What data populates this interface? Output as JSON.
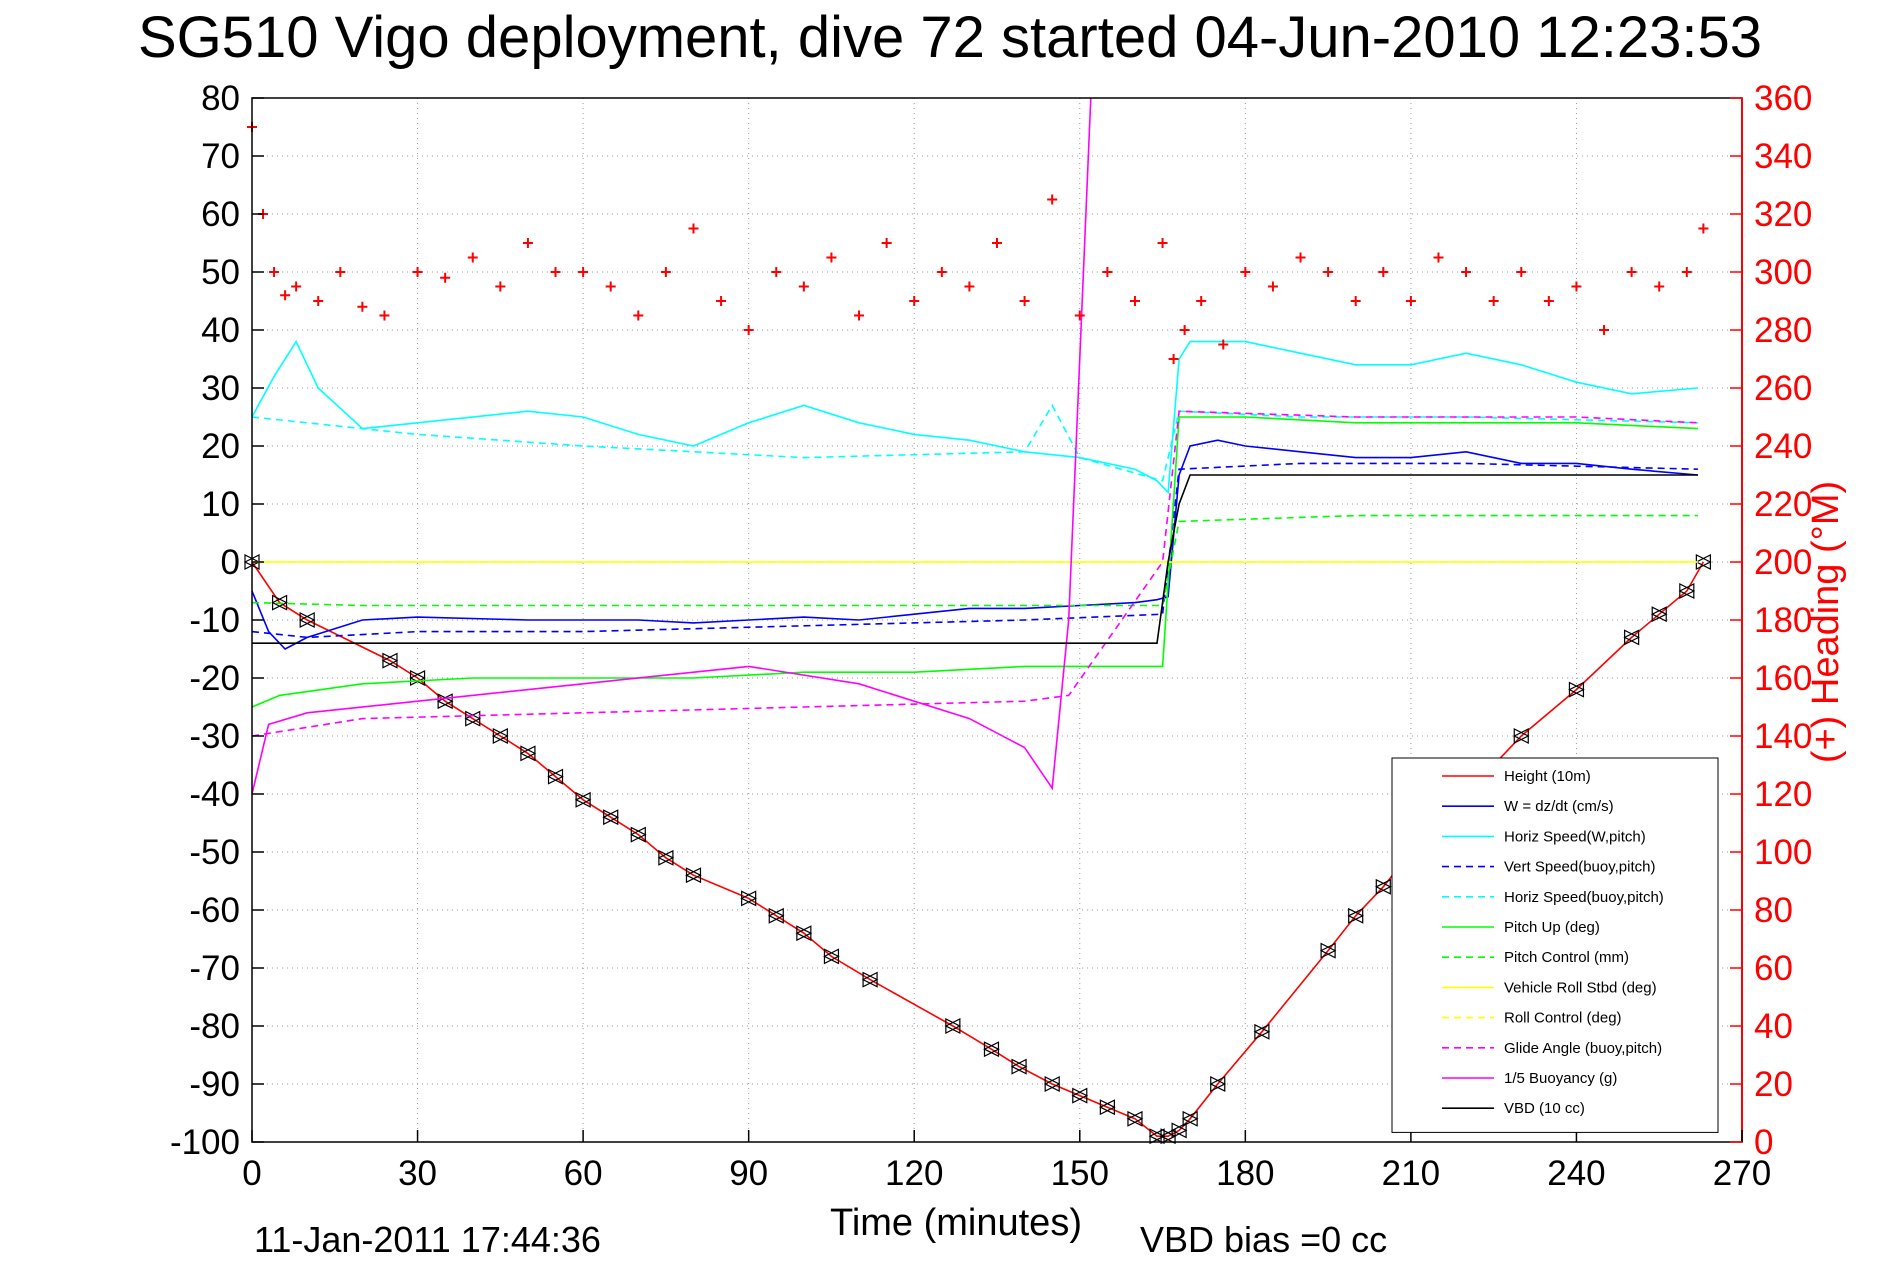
{
  "chart_data": {
    "type": "line",
    "title": "SG510 Vigo deployment, dive 72 started 04-Jun-2010 12:23:53",
    "xlabel": "Time (minutes)",
    "ylabel": "",
    "ylabel_right": "(+) Heading (°M)",
    "xlim": [
      0,
      270
    ],
    "ylim": [
      -100,
      80
    ],
    "ylim_right": [
      0,
      360
    ],
    "xticks": [
      0,
      30,
      60,
      90,
      120,
      150,
      180,
      210,
      240,
      270
    ],
    "yticks": [
      80,
      70,
      60,
      50,
      40,
      30,
      20,
      10,
      0,
      -10,
      -20,
      -30,
      -40,
      -50,
      -60,
      -70,
      -80,
      -90,
      -100
    ],
    "yticks_right": [
      360,
      340,
      320,
      300,
      280,
      260,
      240,
      220,
      200,
      180,
      160,
      140,
      120,
      100,
      80,
      60,
      40,
      20,
      0
    ],
    "grid": true,
    "legend_position": "bottom-right",
    "footer_left": "11-Jan-2011 17:44:36",
    "footer_right": "VBD bias =0 cc",
    "series": [
      {
        "name": "Height (10m)",
        "color": "#ff0000",
        "style": "solid",
        "marker": "triangle",
        "x": [
          0,
          5,
          10,
          25,
          30,
          35,
          40,
          45,
          50,
          55,
          60,
          65,
          70,
          75,
          80,
          90,
          95,
          100,
          105,
          112,
          127,
          134,
          139,
          145,
          150,
          155,
          160,
          164,
          166,
          168,
          170,
          175,
          183,
          195,
          200,
          205,
          210,
          230,
          240,
          250,
          255,
          260,
          263
        ],
        "y": [
          0,
          -7,
          -10,
          -17,
          -20,
          -24,
          -27,
          -30,
          -33,
          -37,
          -41,
          -44,
          -47,
          -51,
          -54,
          -58,
          -61,
          -64,
          -68,
          -72,
          -80,
          -84,
          -87,
          -90,
          -92,
          -94,
          -96,
          -99,
          -99,
          -98,
          -96,
          -90,
          -81,
          -67,
          -61,
          -56,
          -50,
          -30,
          -22,
          -13,
          -9,
          -5,
          0
        ]
      },
      {
        "name": "W = dz/dt (cm/s)",
        "color": "#0000ff",
        "style": "solid",
        "x": [
          0,
          3,
          6,
          10,
          20,
          30,
          50,
          60,
          70,
          80,
          90,
          100,
          110,
          120,
          130,
          140,
          150,
          160,
          164,
          166,
          168,
          170,
          175,
          180,
          190,
          200,
          210,
          220,
          230,
          240,
          250,
          262
        ],
        "y": [
          -5,
          -12,
          -15,
          -13,
          -10,
          -9.5,
          -10,
          -10,
          -10,
          -10.5,
          -10,
          -9.5,
          -10,
          -9,
          -8,
          -8,
          -7.5,
          -7,
          -6.5,
          -6,
          15,
          20,
          21,
          20,
          19,
          18,
          18,
          19,
          17,
          17,
          16,
          15
        ]
      },
      {
        "name": "Horiz Speed(W,pitch)",
        "color": "#00ffff",
        "style": "solid",
        "x": [
          0,
          4,
          8,
          12,
          20,
          30,
          50,
          60,
          70,
          80,
          90,
          100,
          110,
          120,
          130,
          140,
          150,
          160,
          164,
          166,
          168,
          170,
          180,
          190,
          200,
          210,
          220,
          230,
          240,
          250,
          262
        ],
        "y": [
          25,
          32,
          38,
          30,
          23,
          24,
          26,
          25,
          22,
          20,
          24,
          27,
          24,
          22,
          21,
          19,
          18,
          16,
          14,
          12,
          35,
          38,
          38,
          36,
          34,
          34,
          36,
          34,
          31,
          29,
          30
        ]
      },
      {
        "name": "Vert Speed(buoy,pitch)",
        "color": "#0000ff",
        "style": "dashed",
        "x": [
          0,
          10,
          30,
          60,
          100,
          140,
          165,
          168,
          190,
          220,
          262
        ],
        "y": [
          -12,
          -13,
          -12,
          -12,
          -11,
          -10,
          -9,
          16,
          17,
          17,
          16
        ]
      },
      {
        "name": "Horiz Speed(buoy,pitch)",
        "color": "#00ffff",
        "style": "dashed",
        "x": [
          0,
          10,
          30,
          60,
          100,
          140,
          145,
          150,
          165,
          168,
          190,
          220,
          262
        ],
        "y": [
          25,
          24,
          22,
          20,
          18,
          19,
          27,
          18,
          14,
          26,
          25,
          25,
          24
        ]
      },
      {
        "name": "Pitch Up (deg)",
        "color": "#00ff00",
        "style": "solid",
        "x": [
          0,
          5,
          20,
          40,
          60,
          80,
          100,
          120,
          140,
          165,
          168,
          180,
          200,
          220,
          240,
          262
        ],
        "y": [
          -25,
          -23,
          -21,
          -20,
          -20,
          -20,
          -19,
          -19,
          -18,
          -18,
          25,
          25,
          24,
          24,
          24,
          23
        ]
      },
      {
        "name": "Pitch Control (mm)",
        "color": "#00ff00",
        "style": "dashed",
        "x": [
          0,
          20,
          60,
          100,
          140,
          165,
          168,
          200,
          262
        ],
        "y": [
          -7,
          -7.5,
          -7.5,
          -7.5,
          -7.5,
          -7.5,
          7,
          8,
          8
        ]
      },
      {
        "name": "Vehicle Roll Stbd (deg)",
        "color": "#ffff00",
        "style": "solid",
        "x": [
          0,
          20,
          60,
          100,
          140,
          165,
          180,
          220,
          262
        ],
        "y": [
          0,
          0,
          0,
          0,
          0,
          0,
          0,
          0,
          0
        ]
      },
      {
        "name": "Roll Control (deg)",
        "color": "#ffff00",
        "style": "dashed",
        "x": [
          0,
          262
        ],
        "y": [
          0,
          0
        ]
      },
      {
        "name": "Glide Angle (buoy,pitch)",
        "color": "#ff00ff",
        "style": "dashed",
        "x": [
          0,
          20,
          60,
          100,
          140,
          148,
          165,
          168,
          200,
          240,
          262
        ],
        "y": [
          -30,
          -27,
          -26,
          -25,
          -24,
          -23,
          0,
          26,
          25,
          25,
          24
        ]
      },
      {
        "name": "1/5 Buoyancy (g)",
        "color": "#ff00ff",
        "style": "solid",
        "x": [
          0,
          3,
          10,
          30,
          60,
          90,
          110,
          130,
          140,
          145,
          148,
          152
        ],
        "y": [
          -40,
          -28,
          -26,
          -24,
          -21,
          -18,
          -21,
          -27,
          -32,
          -39,
          -10,
          80
        ]
      },
      {
        "name": "VBD (10 cc)",
        "color": "#000000",
        "style": "solid",
        "x": [
          0,
          10,
          164,
          166,
          168,
          170,
          262
        ],
        "y": [
          -14,
          -14,
          -14,
          0,
          10,
          15,
          15
        ]
      },
      {
        "name": "Heading",
        "color": "#ff0000",
        "style": "markers",
        "axis": "right",
        "x": [
          0,
          2,
          4,
          6,
          8,
          12,
          16,
          20,
          24,
          30,
          35,
          40,
          45,
          50,
          55,
          60,
          65,
          70,
          75,
          80,
          85,
          90,
          95,
          100,
          105,
          110,
          115,
          120,
          125,
          130,
          135,
          140,
          145,
          150,
          155,
          160,
          165,
          167,
          169,
          172,
          176,
          180,
          185,
          190,
          195,
          200,
          205,
          210,
          215,
          220,
          225,
          230,
          235,
          240,
          245,
          250,
          255,
          260,
          263
        ],
        "y": [
          350,
          320,
          300,
          292,
          295,
          290,
          300,
          288,
          285,
          300,
          298,
          305,
          295,
          310,
          300,
          300,
          295,
          285,
          300,
          315,
          290,
          280,
          300,
          295,
          305,
          285,
          310,
          290,
          300,
          295,
          310,
          290,
          325,
          285,
          300,
          290,
          310,
          270,
          280,
          290,
          275,
          300,
          295,
          305,
          300,
          290,
          300,
          290,
          305,
          300,
          290,
          300,
          290,
          295,
          280,
          300,
          295,
          300,
          315
        ]
      }
    ]
  }
}
